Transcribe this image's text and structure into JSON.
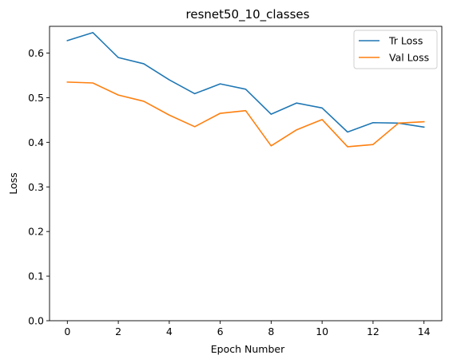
{
  "chart_data": {
    "type": "line",
    "title": "resnet50_10_classes",
    "xlabel": "Epoch Number",
    "ylabel": "Loss",
    "xlim": [
      -0.7,
      14.7
    ],
    "ylim": [
      0,
      0.66
    ],
    "xticks": [
      0,
      2,
      4,
      6,
      8,
      10,
      12,
      14
    ],
    "yticks": [
      0.0,
      0.1,
      0.2,
      0.3,
      0.4,
      0.5,
      0.6
    ],
    "ytick_labels": [
      "0.0",
      "0.1",
      "0.2",
      "0.3",
      "0.4",
      "0.5",
      "0.6"
    ],
    "grid": false,
    "legend_position": "top-right",
    "x": [
      0,
      1,
      2,
      3,
      4,
      5,
      6,
      7,
      8,
      9,
      10,
      11,
      12,
      13,
      14
    ],
    "series": [
      {
        "name": "Tr Loss",
        "color": "#1f77b4",
        "values": [
          0.628,
          0.646,
          0.59,
          0.576,
          0.54,
          0.509,
          0.531,
          0.519,
          0.463,
          0.488,
          0.477,
          0.423,
          0.444,
          0.443,
          0.434
        ]
      },
      {
        "name": "Val Loss",
        "color": "#ff7f0e",
        "values": [
          0.535,
          0.533,
          0.506,
          0.492,
          0.461,
          0.435,
          0.465,
          0.471,
          0.392,
          0.428,
          0.451,
          0.39,
          0.395,
          0.443,
          0.446
        ]
      }
    ]
  }
}
